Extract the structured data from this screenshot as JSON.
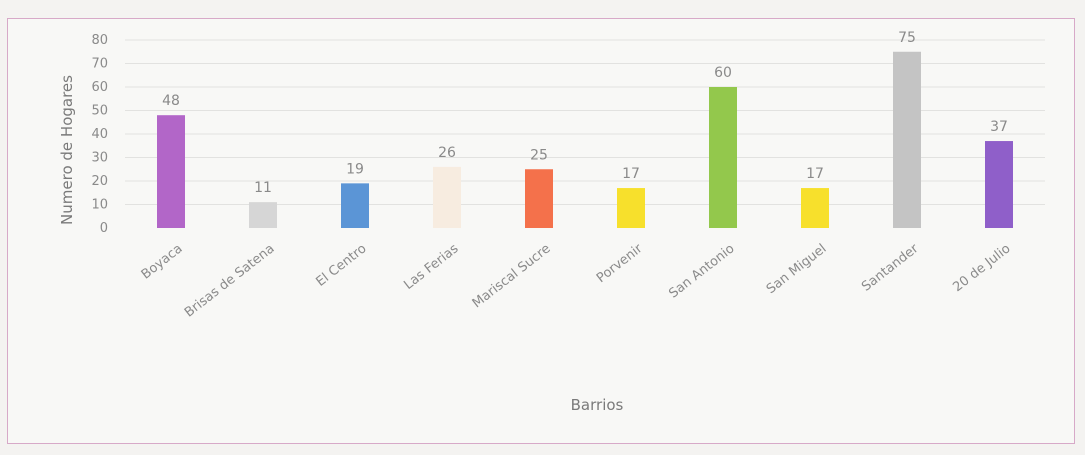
{
  "chart_data": {
    "type": "bar",
    "categories": [
      "Boyaca",
      "Brisas de Satena",
      "El Centro",
      "Las Ferias",
      "Mariscal Sucre",
      "Porvenir",
      "San Antonio",
      "San Miguel",
      "Santander",
      "20 de Julio"
    ],
    "values": [
      48,
      11,
      19,
      26,
      25,
      17,
      60,
      17,
      75,
      37
    ],
    "colors": [
      "#b266c8",
      "#d6d6d6",
      "#5b95d6",
      "#f7ece0",
      "#f4714b",
      "#f7e02c",
      "#93c84c",
      "#f7e02c",
      "#c4c4c4",
      "#8f5fc9"
    ],
    "xlabel": "Barrios",
    "ylabel": "Numero de Hogares",
    "ylim": [
      0,
      80
    ],
    "yticks": [
      0,
      10,
      20,
      30,
      40,
      50,
      60,
      70,
      80
    ],
    "grid": true,
    "legend": false
  }
}
